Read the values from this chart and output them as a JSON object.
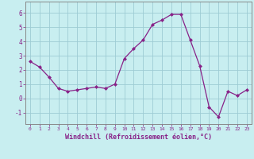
{
  "x": [
    0,
    1,
    2,
    3,
    4,
    5,
    6,
    7,
    8,
    9,
    10,
    11,
    12,
    13,
    14,
    15,
    16,
    17,
    18,
    19,
    20,
    21,
    22,
    23
  ],
  "y": [
    2.6,
    2.2,
    1.5,
    0.7,
    0.5,
    0.6,
    0.7,
    0.8,
    0.7,
    1.0,
    2.8,
    3.5,
    4.1,
    5.2,
    5.5,
    5.9,
    5.9,
    4.1,
    2.3,
    -0.6,
    -1.3,
    0.5,
    0.2,
    0.6
  ],
  "line_color": "#882288",
  "marker": "D",
  "marker_size": 2.0,
  "bg_color": "#C8EEF0",
  "grid_color": "#9ECCD4",
  "xlabel": "Windchill (Refroidissement éolien,°C)",
  "ylim": [
    -1.8,
    6.8
  ],
  "xlim": [
    -0.5,
    23.5
  ],
  "yticks": [
    -1,
    0,
    1,
    2,
    3,
    4,
    5,
    6
  ],
  "xtick_labels": [
    "0",
    "1",
    "2",
    "3",
    "4",
    "5",
    "6",
    "7",
    "8",
    "9",
    "10",
    "11",
    "12",
    "13",
    "14",
    "15",
    "16",
    "17",
    "18",
    "19",
    "20",
    "21",
    "22",
    "23"
  ],
  "tick_color": "#882288",
  "label_color": "#882288",
  "spine_color": "#888888"
}
